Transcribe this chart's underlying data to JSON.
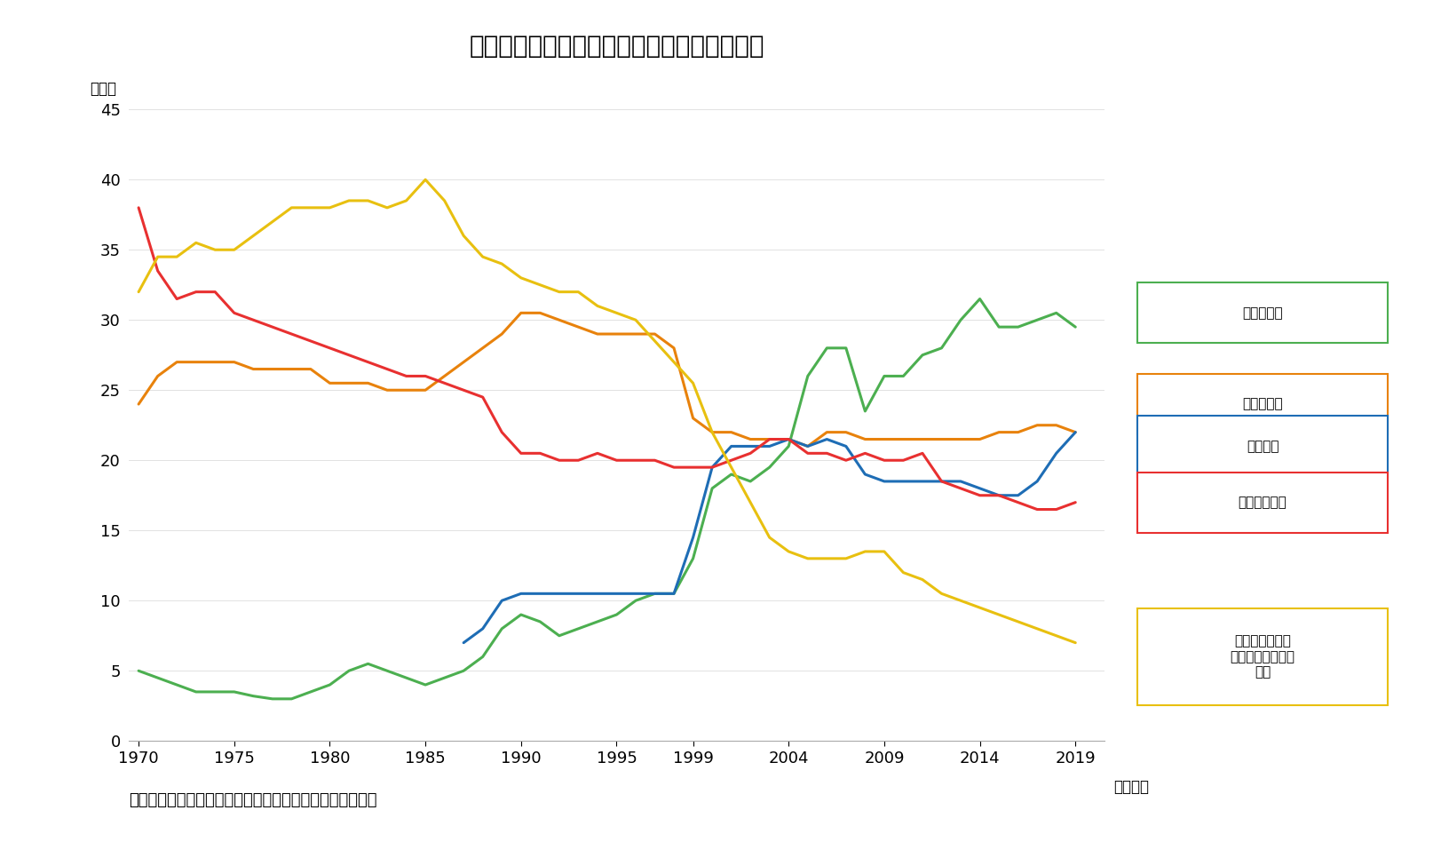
{
  "title": "図表１　主要投賄部門別株式保有比率の推移",
  "subtitle": "（資料）　東京証券取引所「株式分布状況調査」から作成",
  "ylabel": "（％）",
  "xlabel_suffix": "（年度）",
  "ylim": [
    0,
    45
  ],
  "yticks": [
    0,
    5,
    10,
    15,
    20,
    25,
    30,
    35,
    40,
    45
  ],
  "xticks": [
    1970,
    1975,
    1980,
    1985,
    1990,
    1995,
    1999,
    2004,
    2009,
    2014,
    2019
  ],
  "background_color": "#ffffff",
  "series": [
    {
      "label": "外国法人等",
      "color": "#4CAF50",
      "years": [
        1970,
        1971,
        1972,
        1973,
        1974,
        1975,
        1976,
        1977,
        1978,
        1979,
        1980,
        1981,
        1982,
        1983,
        1984,
        1985,
        1986,
        1987,
        1988,
        1989,
        1990,
        1991,
        1992,
        1993,
        1994,
        1995,
        1996,
        1997,
        1998,
        1999,
        2000,
        2001,
        2002,
        2003,
        2004,
        2005,
        2006,
        2007,
        2008,
        2009,
        2010,
        2011,
        2012,
        2013,
        2014,
        2015,
        2016,
        2017,
        2018,
        2019
      ],
      "values": [
        5.0,
        4.5,
        4.0,
        3.5,
        3.5,
        3.5,
        3.2,
        3.0,
        3.0,
        3.5,
        4.0,
        5.0,
        5.5,
        5.0,
        4.5,
        4.0,
        4.5,
        5.0,
        6.0,
        8.0,
        9.0,
        8.5,
        7.5,
        8.0,
        8.5,
        9.0,
        10.0,
        10.5,
        10.5,
        13.0,
        18.0,
        19.0,
        18.5,
        19.5,
        21.0,
        26.0,
        28.0,
        28.0,
        23.5,
        26.0,
        26.0,
        27.5,
        28.0,
        30.0,
        31.5,
        29.5,
        29.5,
        30.0,
        30.5,
        29.5
      ]
    },
    {
      "label": "事業法人等",
      "color": "#E8820C",
      "years": [
        1970,
        1971,
        1972,
        1973,
        1974,
        1975,
        1976,
        1977,
        1978,
        1979,
        1980,
        1981,
        1982,
        1983,
        1984,
        1985,
        1986,
        1987,
        1988,
        1989,
        1990,
        1991,
        1992,
        1993,
        1994,
        1995,
        1996,
        1997,
        1998,
        1999,
        2000,
        2001,
        2002,
        2003,
        2004,
        2005,
        2006,
        2007,
        2008,
        2009,
        2010,
        2011,
        2012,
        2013,
        2014,
        2015,
        2016,
        2017,
        2018,
        2019
      ],
      "values": [
        24.0,
        26.0,
        27.0,
        27.0,
        27.0,
        27.0,
        26.5,
        26.5,
        26.5,
        26.5,
        25.5,
        25.5,
        25.5,
        25.0,
        25.0,
        25.0,
        26.0,
        27.0,
        28.0,
        29.0,
        30.5,
        30.5,
        30.0,
        29.5,
        29.0,
        29.0,
        29.0,
        29.0,
        28.0,
        23.0,
        22.0,
        22.0,
        21.5,
        21.5,
        21.5,
        21.0,
        22.0,
        22.0,
        21.5,
        21.5,
        21.5,
        21.5,
        21.5,
        21.5,
        21.5,
        22.0,
        22.0,
        22.5,
        22.5,
        22.0
      ]
    },
    {
      "label": "信託銀行",
      "color": "#1E6DB5",
      "years": [
        1987,
        1988,
        1989,
        1990,
        1991,
        1992,
        1993,
        1994,
        1995,
        1996,
        1997,
        1998,
        1999,
        2000,
        2001,
        2002,
        2003,
        2004,
        2005,
        2006,
        2007,
        2008,
        2009,
        2010,
        2011,
        2012,
        2013,
        2014,
        2015,
        2016,
        2017,
        2018,
        2019
      ],
      "values": [
        7.0,
        8.0,
        10.0,
        10.5,
        10.5,
        10.5,
        10.5,
        10.5,
        10.5,
        10.5,
        10.5,
        10.5,
        14.5,
        19.5,
        21.0,
        21.0,
        21.0,
        21.5,
        21.0,
        21.5,
        21.0,
        19.0,
        18.5,
        18.5,
        18.5,
        18.5,
        18.5,
        18.0,
        17.5,
        17.5,
        18.5,
        20.5,
        22.0
      ]
    },
    {
      "label": "個人・その他",
      "color": "#E83030",
      "years": [
        1970,
        1971,
        1972,
        1973,
        1974,
        1975,
        1976,
        1977,
        1978,
        1979,
        1980,
        1981,
        1982,
        1983,
        1984,
        1985,
        1986,
        1987,
        1988,
        1989,
        1990,
        1991,
        1992,
        1993,
        1994,
        1995,
        1996,
        1997,
        1998,
        1999,
        2000,
        2001,
        2002,
        2003,
        2004,
        2005,
        2006,
        2007,
        2008,
        2009,
        2010,
        2011,
        2012,
        2013,
        2014,
        2015,
        2016,
        2017,
        2018,
        2019
      ],
      "values": [
        38.0,
        33.5,
        31.5,
        32.0,
        32.0,
        30.5,
        30.0,
        29.5,
        29.0,
        28.5,
        28.0,
        27.5,
        27.0,
        26.5,
        26.0,
        26.0,
        25.5,
        25.0,
        24.5,
        22.0,
        20.5,
        20.5,
        20.0,
        20.0,
        20.5,
        20.0,
        20.0,
        20.0,
        19.5,
        19.5,
        19.5,
        20.0,
        20.5,
        21.5,
        21.5,
        20.5,
        20.5,
        20.0,
        20.5,
        20.0,
        20.0,
        20.5,
        18.5,
        18.0,
        17.5,
        17.5,
        17.0,
        16.5,
        16.5,
        17.0
      ]
    },
    {
      "label": "都銀・地銀等、\n生・損保、その他\n金融",
      "color": "#E8C010",
      "years": [
        1970,
        1971,
        1972,
        1973,
        1974,
        1975,
        1976,
        1977,
        1978,
        1979,
        1980,
        1981,
        1982,
        1983,
        1984,
        1985,
        1986,
        1987,
        1988,
        1989,
        1990,
        1991,
        1992,
        1993,
        1994,
        1995,
        1996,
        1997,
        1998,
        1999,
        2000,
        2001,
        2002,
        2003,
        2004,
        2005,
        2006,
        2007,
        2008,
        2009,
        2010,
        2011,
        2012,
        2013,
        2014,
        2015,
        2016,
        2017,
        2018,
        2019
      ],
      "values": [
        32.0,
        34.5,
        34.5,
        35.5,
        35.0,
        35.0,
        36.0,
        37.0,
        38.0,
        38.0,
        38.0,
        38.5,
        38.5,
        38.0,
        38.5,
        40.0,
        38.5,
        36.0,
        34.5,
        34.0,
        33.0,
        32.5,
        32.0,
        32.0,
        31.0,
        30.5,
        30.0,
        28.5,
        27.0,
        25.5,
        22.0,
        19.5,
        17.0,
        14.5,
        13.5,
        13.0,
        13.0,
        13.0,
        13.5,
        13.5,
        12.0,
        11.5,
        10.5,
        10.0,
        9.5,
        9.0,
        8.5,
        8.0,
        7.5,
        7.0
      ]
    }
  ],
  "legend_entries": [
    {
      "label": "外国法人等",
      "color": "#4CAF50"
    },
    {
      "label": "事業法人等",
      "color": "#E8820C"
    },
    {
      "label": "信託銀行",
      "color": "#1E6DB5"
    },
    {
      "label": "個人・その他",
      "color": "#E83030"
    },
    {
      "label": "都銀・地銀等、\n生・損保、その他\n金融",
      "color": "#E8C010"
    }
  ]
}
